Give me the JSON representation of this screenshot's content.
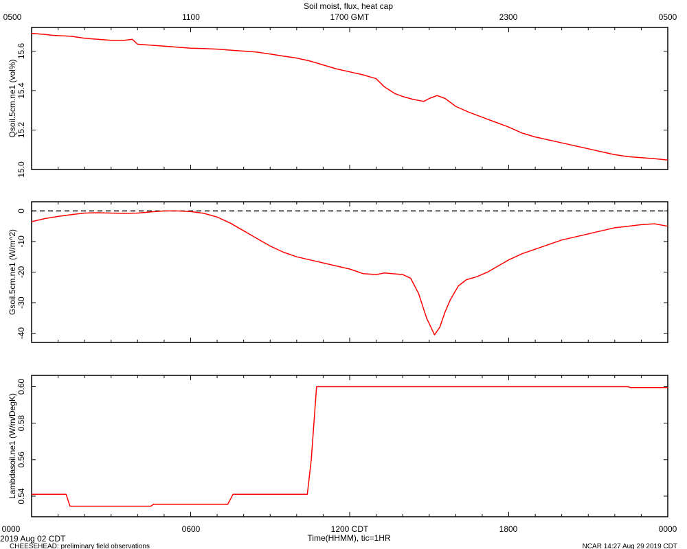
{
  "title": "Soil moist, flux, heat cap",
  "top_axis_ticks": [
    "0500",
    "1100",
    "1700 GMT",
    "2300",
    "0500"
  ],
  "bottom_axis_ticks": [
    "0000",
    "0600",
    "1200 CDT",
    "1800",
    "0000"
  ],
  "x_axis_label": "Time(HHMM), tic=1HR",
  "date_label": "2019 Aug 02 CDT",
  "footer_left": "CHEESEHEAD: preliminary field observations",
  "footer_right": "NCAR 14:27 Aug 29 2019 CDT",
  "line_color": "#ff0000",
  "zero_line_color": "#000000",
  "chart_data": [
    {
      "type": "line",
      "ylabel": "Qsoil.5cm.ne1 (vol%)",
      "ylim": [
        15.0,
        15.72
      ],
      "yticks": [
        15.0,
        15.2,
        15.4,
        15.6
      ],
      "ytick_labels": [
        "15.0",
        "15.2",
        "15.4",
        "15.6"
      ],
      "xlim": [
        0,
        24
      ],
      "x": [
        0,
        0.5,
        0.8,
        1.5,
        2,
        2.5,
        3,
        3.5,
        3.8,
        4,
        4.5,
        5,
        5.5,
        6,
        6.5,
        7,
        7.5,
        8,
        8.5,
        9,
        9.5,
        10,
        10.5,
        11,
        11.5,
        12,
        12.5,
        13,
        13.3,
        13.7,
        14,
        14.4,
        14.8,
        15,
        15.3,
        15.6,
        16,
        16.5,
        17,
        17.5,
        18,
        18.5,
        19,
        19.5,
        20,
        20.5,
        21,
        21.5,
        22,
        22.5,
        23,
        23.5,
        24
      ],
      "y": [
        15.69,
        15.685,
        15.68,
        15.675,
        15.665,
        15.66,
        15.655,
        15.655,
        15.66,
        15.635,
        15.63,
        15.625,
        15.62,
        15.615,
        15.613,
        15.61,
        15.605,
        15.6,
        15.595,
        15.585,
        15.575,
        15.565,
        15.55,
        15.53,
        15.51,
        15.495,
        15.48,
        15.46,
        15.42,
        15.385,
        15.37,
        15.355,
        15.345,
        15.36,
        15.375,
        15.36,
        15.32,
        15.29,
        15.265,
        15.24,
        15.215,
        15.185,
        15.165,
        15.15,
        15.135,
        15.12,
        15.105,
        15.09,
        15.075,
        15.065,
        15.06,
        15.055,
        15.048
      ],
      "series": [
        {
          "name": "",
          "color": "#ff0000"
        }
      ]
    },
    {
      "type": "line",
      "ylabel": "Gsoil.5cm.ne1 (W/m^2)",
      "ylim": [
        -43,
        3
      ],
      "yticks": [
        0,
        -10,
        -20,
        -30,
        -40
      ],
      "ytick_labels": [
        "0",
        "-10",
        "-20",
        "-30",
        "-40"
      ],
      "xlim": [
        0,
        24
      ],
      "zero_line": true,
      "x": [
        0,
        0.5,
        1,
        1.5,
        2,
        2.5,
        3,
        3.5,
        4,
        4.5,
        5,
        5.5,
        6,
        6.5,
        7,
        7.5,
        8,
        8.5,
        9,
        9.5,
        10,
        10.5,
        11,
        11.5,
        12,
        12.5,
        13,
        13.3,
        13.6,
        14,
        14.3,
        14.6,
        14.9,
        15.2,
        15.4,
        15.6,
        15.8,
        15.9,
        16.1,
        16.4,
        16.8,
        17.2,
        17.6,
        18,
        18.5,
        19,
        19.5,
        20,
        20.5,
        21,
        21.5,
        22,
        22.5,
        23,
        23.5,
        24
      ],
      "y": [
        -3.5,
        -2.5,
        -1.8,
        -1.2,
        -0.7,
        -0.6,
        -0.7,
        -0.8,
        -0.7,
        -0.3,
        0,
        0,
        -0.2,
        -0.8,
        -2.0,
        -4.0,
        -6.5,
        -9.0,
        -11.5,
        -13.5,
        -15.0,
        -16.0,
        -17.0,
        -18.0,
        -19.0,
        -20.5,
        -20.8,
        -20.3,
        -20.5,
        -20.8,
        -22.0,
        -27.0,
        -35.0,
        -40.5,
        -38.0,
        -33.0,
        -29.0,
        -27.5,
        -24.5,
        -22.5,
        -21.5,
        -20.0,
        -18.0,
        -16.0,
        -14.0,
        -12.5,
        -11.0,
        -9.5,
        -8.5,
        -7.5,
        -6.5,
        -5.5,
        -5.0,
        -4.5,
        -4.2,
        -5.0
      ],
      "series": [
        {
          "name": "",
          "color": "#ff0000"
        }
      ]
    },
    {
      "type": "line",
      "ylabel": "Lambdasoil.ne1 (W/m/DegK)",
      "ylim": [
        0.5287,
        0.6062
      ],
      "yticks": [
        0.54,
        0.56,
        0.58,
        0.6
      ],
      "ytick_labels": [
        "0.54",
        "0.56",
        "0.58",
        "0.60"
      ],
      "xlim": [
        0,
        24
      ],
      "x": [
        0,
        1.3,
        1.45,
        4.5,
        4.6,
        7.4,
        7.6,
        10.4,
        10.55,
        10.75,
        22.5,
        22.6,
        24
      ],
      "y": [
        0.541,
        0.541,
        0.5345,
        0.5345,
        0.5355,
        0.5355,
        0.541,
        0.541,
        0.56,
        0.6,
        0.6,
        0.5995,
        0.5995
      ],
      "series": [
        {
          "name": "",
          "color": "#ff0000"
        }
      ]
    }
  ]
}
